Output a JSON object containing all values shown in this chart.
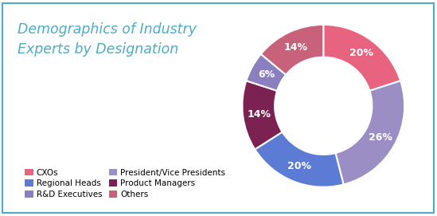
{
  "title": "Demographics of Industry\nExperts by Designation",
  "title_color": "#4BACC6",
  "background_color": "#FFFFFF",
  "border_color": "#4BACC6",
  "slices": [
    {
      "label": "CXOs",
      "value": 20,
      "color": "#E8637F",
      "pct": "20%"
    },
    {
      "label": "President/Vice Presidents",
      "value": 26,
      "color": "#9B8EC4",
      "pct": "26%"
    },
    {
      "label": "Regional Heads",
      "value": 20,
      "color": "#5B7BD5",
      "pct": "20%"
    },
    {
      "label": "Product Managers",
      "value": 14,
      "color": "#7B2252",
      "pct": "14%"
    },
    {
      "label": "R&D Executives",
      "value": 6,
      "color": "#8B7FBF",
      "pct": "6%"
    },
    {
      "label": "Others",
      "value": 14,
      "color": "#C8617A",
      "pct": "14%"
    }
  ],
  "pct_label_color": "#FFFFFF",
  "pct_fontsize": 9,
  "title_fontsize": 12.5,
  "donut_width": 0.4,
  "border_lw": 1.5
}
